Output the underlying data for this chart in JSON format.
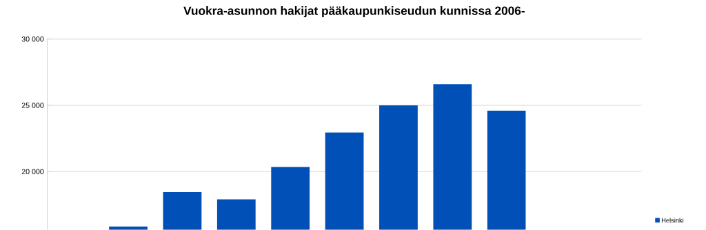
{
  "chart_data": {
    "type": "bar",
    "title": "Vuokra-asunnon hakijat pääkaupunkiseudun kunnissa 2006-",
    "categories": [
      null,
      null,
      null,
      null,
      null,
      null,
      null,
      null,
      null,
      null,
      null
    ],
    "series": [
      {
        "name": "Helsinki",
        "color": "#0050b8",
        "values": [
          null,
          15850,
          18450,
          17900,
          20350,
          22950,
          25000,
          26600,
          24600,
          null,
          null
        ]
      }
    ],
    "ylim": [
      15600,
      30000
    ],
    "yticks": [
      {
        "value": 20000,
        "label": "20 000"
      },
      {
        "value": 25000,
        "label": "25 000"
      },
      {
        "value": 30000,
        "label": "30 000"
      }
    ],
    "grid": "y",
    "legend": "right",
    "tick_labels": "y"
  }
}
